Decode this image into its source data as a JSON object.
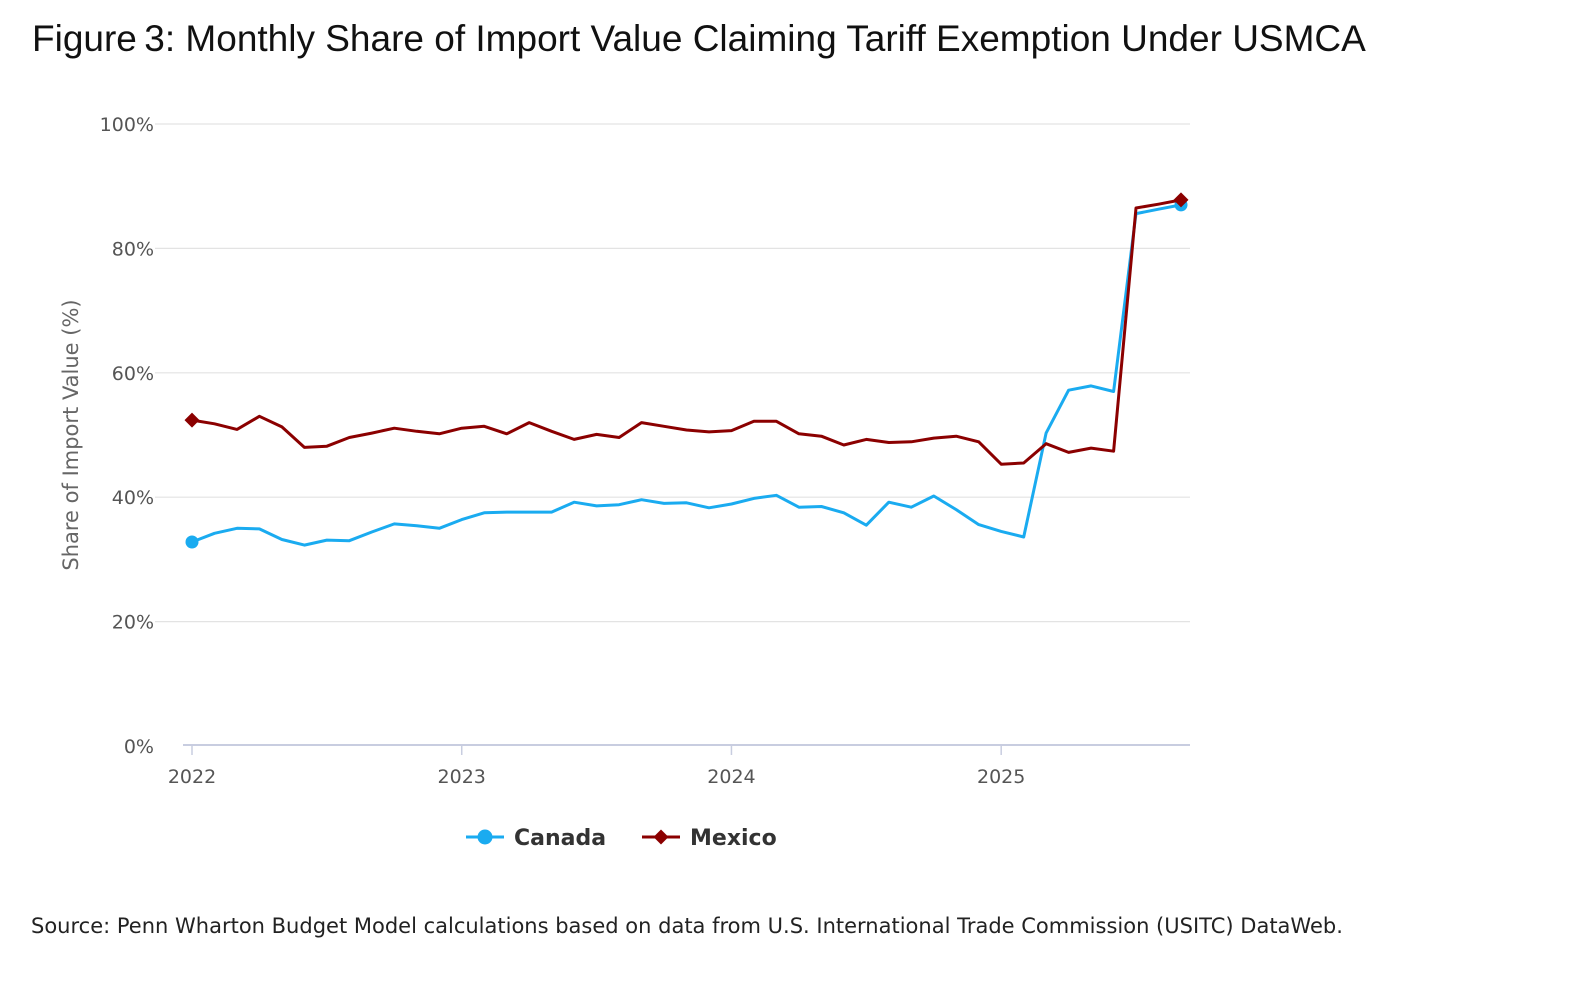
{
  "figure": {
    "title": "Figure 3: Monthly Share of Import Value Claiming Tariff Exemption Under USMCA",
    "source": "Source: Penn Wharton Budget Model calculations based on data from U.S. International Trade Commission (USITC) DataWeb."
  },
  "chart_data": {
    "type": "line",
    "title": "Figure 3: Monthly Share of Import Value Claiming Tariff Exemption Under USMCA",
    "xlabel": "",
    "ylabel": "Share of Import Value (%)",
    "ylim": [
      0,
      100
    ],
    "y_ticks": [
      0,
      20,
      40,
      60,
      80,
      100
    ],
    "y_tick_labels": [
      "0%",
      "20%",
      "40%",
      "60%",
      "80%",
      "100%"
    ],
    "x_ticks": [
      0,
      12,
      24,
      36
    ],
    "x_tick_labels": [
      "2022",
      "2023",
      "2024",
      "2025"
    ],
    "x_unit": "months since Jan 2022",
    "xlim": [
      0,
      44
    ],
    "grid": true,
    "legend_position": "bottom-center",
    "series": [
      {
        "name": "Canada",
        "color": "#1AABF0",
        "marker": "circle",
        "values": [
          32.8,
          34.2,
          35.0,
          34.9,
          33.2,
          32.3,
          33.1,
          33.0,
          34.4,
          35.7,
          35.4,
          35.0,
          36.4,
          37.5,
          37.6,
          37.6,
          37.6,
          39.2,
          38.6,
          38.8,
          39.6,
          39.0,
          39.1,
          38.3,
          38.9,
          39.8,
          40.3,
          38.4,
          38.5,
          37.5,
          35.5,
          39.2,
          38.4,
          40.2,
          38.0,
          35.6,
          34.5,
          33.6,
          50.3,
          57.2,
          57.9,
          57.0,
          85.6,
          86.3,
          87.0
        ]
      },
      {
        "name": "Mexico",
        "color": "#8B0000",
        "marker": "diamond",
        "values": [
          52.4,
          51.8,
          50.9,
          53.0,
          51.3,
          48.0,
          48.2,
          49.6,
          50.3,
          51.1,
          50.6,
          50.2,
          51.1,
          51.4,
          50.2,
          52.0,
          50.6,
          49.3,
          50.1,
          49.6,
          52.0,
          51.4,
          50.8,
          50.5,
          50.7,
          52.2,
          52.2,
          50.2,
          49.8,
          48.4,
          49.3,
          48.8,
          48.9,
          49.5,
          49.8,
          48.9,
          45.3,
          45.5,
          48.6,
          47.2,
          47.9,
          47.4,
          86.5,
          87.1,
          87.8
        ]
      }
    ]
  }
}
